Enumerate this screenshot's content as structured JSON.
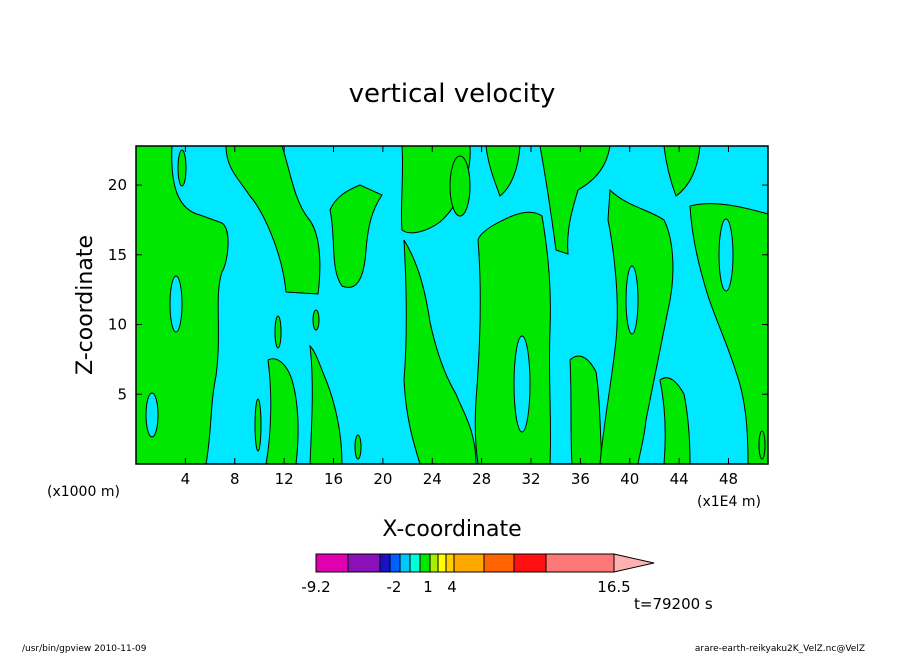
{
  "chart_data": {
    "type": "heatmap",
    "title": "vertical velocity",
    "xlabel": "X-coordinate",
    "ylabel": "Z-coordinate",
    "x_unit_left": "(x1000 m)",
    "x_unit_right": "(x1E4 m)",
    "xlim": [
      0,
      51.2
    ],
    "ylim": [
      0,
      22.8
    ],
    "x_ticks": [
      "4",
      "8",
      "12",
      "16",
      "20",
      "24",
      "28",
      "32",
      "36",
      "40",
      "44",
      "48"
    ],
    "y_ticks": [
      "5",
      "10",
      "15",
      "20"
    ],
    "x_tick_values": [
      4,
      8,
      12,
      16,
      20,
      24,
      28,
      32,
      36,
      40,
      44,
      48
    ],
    "y_tick_values": [
      5,
      10,
      15,
      20
    ],
    "fill_levels": [
      {
        "range": "below 0",
        "color": "#00e8ff"
      },
      {
        "range": "0 to 1",
        "color": "#00e800"
      }
    ],
    "colorbar": {
      "colors": [
        "#e000b0",
        "#8a10b8",
        "#1a10c8",
        "#0060ff",
        "#00c8ff",
        "#00ffd8",
        "#00e800",
        "#a8f000",
        "#ffff00",
        "#ffd000",
        "#ffa800",
        "#ff6400",
        "#ff1010",
        "#ff7878"
      ],
      "labels": [
        "-9.2",
        "-2",
        "1",
        "4",
        "16.5"
      ],
      "label_positions": [
        0,
        2,
        3,
        4,
        7
      ]
    },
    "time_label": "t=79200 s",
    "grid": false,
    "legend": "bottom colorbar"
  },
  "footer": {
    "left": "/usr/bin/gpview   2010-11-09",
    "right": "arare-earth-reikyaku2K_VelZ.nc@VelZ"
  }
}
